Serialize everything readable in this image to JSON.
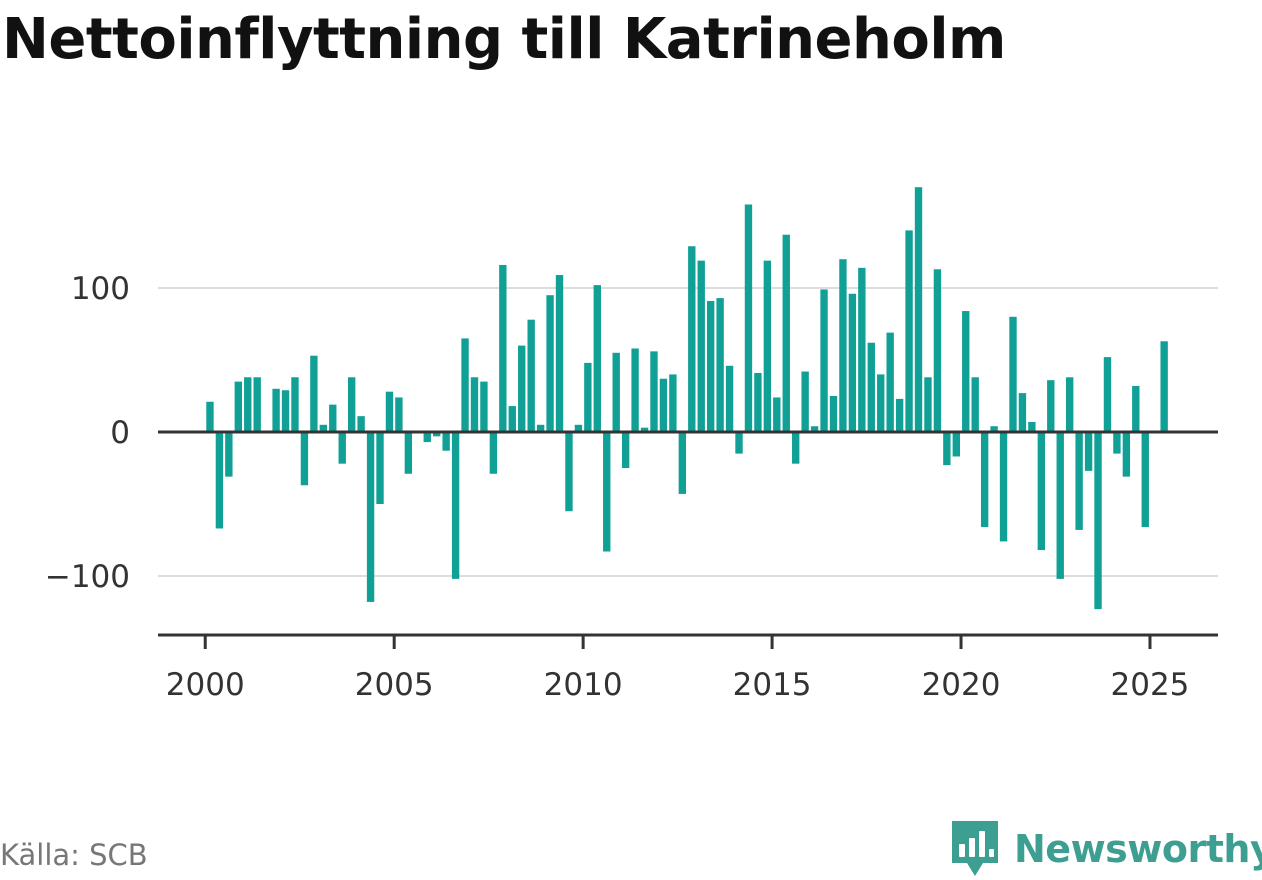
{
  "title": "Nettoinflyttning till Katrineholm",
  "source": "Källa: SCB",
  "brand": {
    "name": "Newsworthy",
    "icon": "newsworthy-logo-icon",
    "color": "#3d9e92"
  },
  "colors": {
    "bar": "#11a095",
    "gridline": "#dddddd",
    "zero_line": "#333333",
    "axis_text": "#333333"
  },
  "chart_data": {
    "type": "bar",
    "title": "Nettoinflyttning till Katrineholm",
    "xlabel": "",
    "ylabel": "",
    "frequency": "quarterly",
    "xlim": [
      1998.75,
      2026.8
    ],
    "ylim": [
      -140,
      180
    ],
    "x_ticks": [
      2000,
      2005,
      2010,
      2015,
      2020,
      2025
    ],
    "y_ticks": [
      -100,
      0,
      100
    ],
    "y_tick_labels": [
      "−100",
      "0",
      "100"
    ],
    "grid": true,
    "legend": "none",
    "x": [
      "2000-Q1",
      "2000-Q2",
      "2000-Q3",
      "2000-Q4",
      "2001-Q1",
      "2001-Q2",
      "2001-Q3",
      "2001-Q4",
      "2002-Q1",
      "2002-Q2",
      "2002-Q3",
      "2002-Q4",
      "2003-Q1",
      "2003-Q2",
      "2003-Q3",
      "2003-Q4",
      "2004-Q1",
      "2004-Q2",
      "2004-Q3",
      "2004-Q4",
      "2005-Q1",
      "2005-Q2",
      "2005-Q3",
      "2005-Q4",
      "2006-Q1",
      "2006-Q2",
      "2006-Q3",
      "2006-Q4",
      "2007-Q1",
      "2007-Q2",
      "2007-Q3",
      "2007-Q4",
      "2008-Q1",
      "2008-Q2",
      "2008-Q3",
      "2008-Q4",
      "2009-Q1",
      "2009-Q2",
      "2009-Q3",
      "2009-Q4",
      "2010-Q1",
      "2010-Q2",
      "2010-Q3",
      "2010-Q4",
      "2011-Q1",
      "2011-Q2",
      "2011-Q3",
      "2011-Q4",
      "2012-Q1",
      "2012-Q2",
      "2012-Q3",
      "2012-Q4",
      "2013-Q1",
      "2013-Q2",
      "2013-Q3",
      "2013-Q4",
      "2014-Q1",
      "2014-Q2",
      "2014-Q3",
      "2014-Q4",
      "2015-Q1",
      "2015-Q2",
      "2015-Q3",
      "2015-Q4",
      "2016-Q1",
      "2016-Q2",
      "2016-Q3",
      "2016-Q4",
      "2017-Q1",
      "2017-Q2",
      "2017-Q3",
      "2017-Q4",
      "2018-Q1",
      "2018-Q2",
      "2018-Q3",
      "2018-Q4",
      "2019-Q1",
      "2019-Q2",
      "2019-Q3",
      "2019-Q4",
      "2020-Q1",
      "2020-Q2",
      "2020-Q3",
      "2020-Q4",
      "2021-Q1",
      "2021-Q2",
      "2021-Q3",
      "2021-Q4",
      "2022-Q1",
      "2022-Q2",
      "2022-Q3",
      "2022-Q4",
      "2023-Q1",
      "2023-Q2",
      "2023-Q3",
      "2023-Q4",
      "2024-Q1",
      "2024-Q2",
      "2024-Q3",
      "2024-Q4",
      "2025-Q1",
      "2025-Q2"
    ],
    "values": [
      21,
      -67,
      -31,
      35,
      38,
      38,
      0,
      30,
      29,
      38,
      -37,
      53,
      5,
      19,
      -22,
      38,
      11,
      -118,
      -50,
      28,
      24,
      -29,
      0,
      -7,
      -3,
      -13,
      -102,
      65,
      38,
      35,
      -29,
      116,
      18,
      60,
      78,
      5,
      95,
      109,
      -55,
      5,
      48,
      102,
      -83,
      55,
      -25,
      58,
      3,
      56,
      37,
      40,
      -43,
      129,
      119,
      91,
      93,
      46,
      -15,
      158,
      41,
      119,
      24,
      137,
      -22,
      42,
      4,
      99,
      25,
      120,
      96,
      114,
      62,
      40,
      69,
      23,
      140,
      170,
      38,
      113,
      -23,
      -17,
      84,
      38,
      -66,
      4,
      -76,
      80,
      27,
      7,
      -82,
      36,
      -102,
      38,
      -68,
      -27,
      -123,
      52,
      -15,
      -31,
      32,
      -66,
      0,
      63
    ]
  }
}
